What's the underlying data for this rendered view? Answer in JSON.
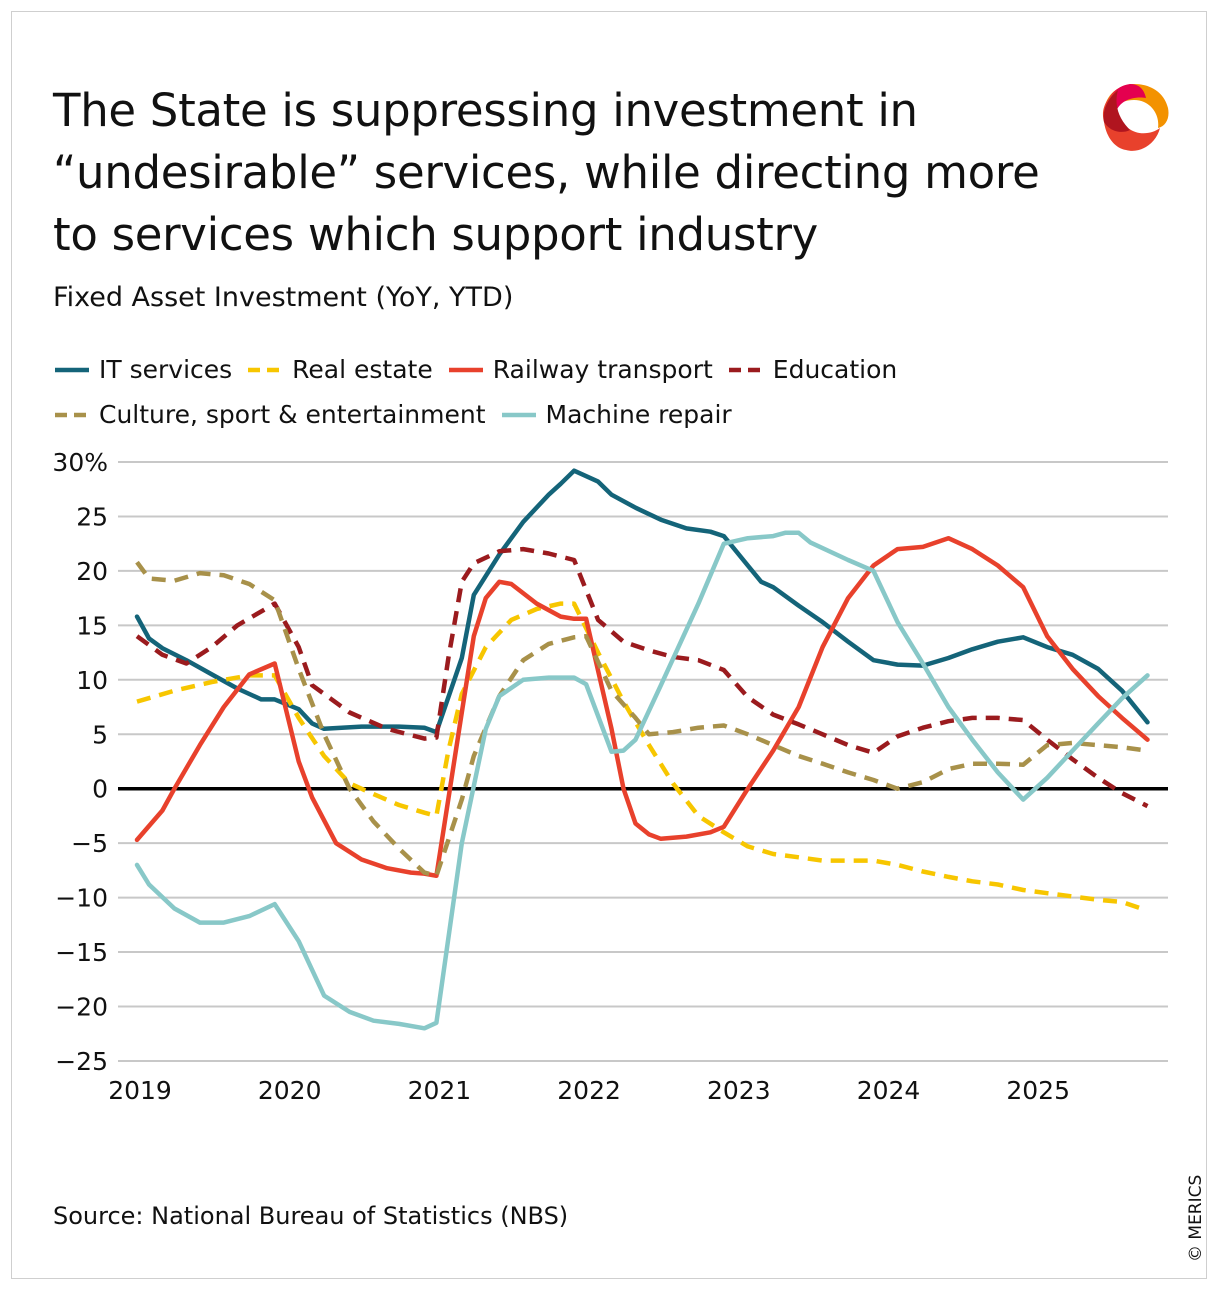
{
  "title": "The State is suppressing investment in “undesirable” services, while directing more to services which support industry",
  "subtitle": "Fixed Asset Investment (YoY, YTD)",
  "source": "Source: National Bureau of Statistics (NBS)",
  "copyright": "© MERICS",
  "logo": {
    "text": "MERICS",
    "colors": [
      "#c8102e",
      "#e4004f",
      "#f39200",
      "#e8412c"
    ]
  },
  "chart_data": {
    "type": "line",
    "title": "The State is suppressing investment in “undesirable” services, while directing more to services which support industry",
    "subtitle": "Fixed Asset Investment (YoY, YTD)",
    "xlabel": "",
    "ylabel": "",
    "xlim": [
      2019,
      2026
    ],
    "ylim": [
      -25,
      30
    ],
    "grid": "horizontal",
    "legend_position": "top",
    "x_ticks": [
      2019,
      2020,
      2021,
      2022,
      2023,
      2024,
      2025
    ],
    "x_tick_labels": [
      "2019",
      "2020",
      "2021",
      "2022",
      "2023",
      "2024",
      "2025"
    ],
    "y_ticks": [
      30,
      25,
      20,
      15,
      10,
      5,
      0,
      -5,
      -10,
      -15,
      -20,
      -25
    ],
    "y_tick_labels": [
      "30%",
      "25",
      "20",
      "15",
      "10",
      "5",
      "0",
      "−5",
      "−10",
      "−15",
      "−20",
      "−25"
    ],
    "series": [
      {
        "name": "IT services",
        "color": "#146479",
        "dashed": false,
        "points": [
          [
            2019,
            15.8
          ],
          [
            2019.08,
            13.8
          ],
          [
            2019.17,
            12.9
          ],
          [
            2019.33,
            11.8
          ],
          [
            2019.5,
            10.5
          ],
          [
            2019.67,
            9.2
          ],
          [
            2019.83,
            8.2
          ],
          [
            2019.92,
            8.2
          ],
          [
            2020.08,
            7.3
          ],
          [
            2020.17,
            6
          ],
          [
            2020.25,
            5.5
          ],
          [
            2020.5,
            5.7
          ],
          [
            2020.75,
            5.7
          ],
          [
            2020.92,
            5.6
          ],
          [
            2021,
            5.2
          ],
          [
            2021.17,
            12
          ],
          [
            2021.25,
            17.8
          ],
          [
            2021.42,
            21.5
          ],
          [
            2021.58,
            24.5
          ],
          [
            2021.75,
            27
          ],
          [
            2021.83,
            28
          ],
          [
            2021.92,
            29.2
          ],
          [
            2022.08,
            28.2
          ],
          [
            2022.17,
            27
          ],
          [
            2022.33,
            25.8
          ],
          [
            2022.5,
            24.7
          ],
          [
            2022.67,
            23.9
          ],
          [
            2022.83,
            23.6
          ],
          [
            2022.92,
            23.2
          ],
          [
            2023.08,
            20.5
          ],
          [
            2023.17,
            19
          ],
          [
            2023.25,
            18.5
          ],
          [
            2023.42,
            16.8
          ],
          [
            2023.58,
            15.3
          ],
          [
            2023.75,
            13.5
          ],
          [
            2023.92,
            11.8
          ],
          [
            2024.08,
            11.4
          ],
          [
            2024.25,
            11.3
          ],
          [
            2024.42,
            12.0
          ],
          [
            2024.58,
            12.8
          ],
          [
            2024.75,
            13.5
          ],
          [
            2024.92,
            13.9
          ],
          [
            2025.08,
            13.0
          ],
          [
            2025.25,
            12.3
          ],
          [
            2025.42,
            11.0
          ],
          [
            2025.58,
            9.0
          ],
          [
            2025.75,
            6.1
          ]
        ]
      },
      {
        "name": "Real estate",
        "color": "#f7c600",
        "dashed": true,
        "points": [
          [
            2019,
            8
          ],
          [
            2019.25,
            9
          ],
          [
            2019.5,
            9.8
          ],
          [
            2019.75,
            10.4
          ],
          [
            2019.92,
            10.4
          ],
          [
            2020.08,
            6.5
          ],
          [
            2020.25,
            3
          ],
          [
            2020.42,
            0.5
          ],
          [
            2020.58,
            -0.5
          ],
          [
            2020.75,
            -1.5
          ],
          [
            2020.92,
            -2.2
          ],
          [
            2021,
            -2.5
          ],
          [
            2021.08,
            3.5
          ],
          [
            2021.17,
            8.7
          ],
          [
            2021.33,
            13
          ],
          [
            2021.5,
            15.5
          ],
          [
            2021.67,
            16.5
          ],
          [
            2021.83,
            17
          ],
          [
            2021.92,
            17
          ],
          [
            2022.08,
            12.5
          ],
          [
            2022.25,
            8
          ],
          [
            2022.42,
            4
          ],
          [
            2022.58,
            0.5
          ],
          [
            2022.75,
            -2.5
          ],
          [
            2022.92,
            -4
          ],
          [
            2023.08,
            -5.3
          ],
          [
            2023.25,
            -6
          ],
          [
            2023.42,
            -6.3
          ],
          [
            2023.58,
            -6.6
          ],
          [
            2023.75,
            -6.6
          ],
          [
            2023.92,
            -6.6
          ],
          [
            2024.08,
            -7.0
          ],
          [
            2024.25,
            -7.6
          ],
          [
            2024.42,
            -8.1
          ],
          [
            2024.58,
            -8.5
          ],
          [
            2024.75,
            -8.8
          ],
          [
            2024.92,
            -9.3
          ],
          [
            2025.08,
            -9.6
          ],
          [
            2025.25,
            -9.9
          ],
          [
            2025.42,
            -10.2
          ],
          [
            2025.58,
            -10.4
          ],
          [
            2025.75,
            -11.2
          ]
        ]
      },
      {
        "name": "Railway transport",
        "color": "#e8412c",
        "dashed": false,
        "points": [
          [
            2019,
            -4.7
          ],
          [
            2019.17,
            -2
          ],
          [
            2019.25,
            0
          ],
          [
            2019.42,
            4
          ],
          [
            2019.58,
            7.5
          ],
          [
            2019.75,
            10.5
          ],
          [
            2019.92,
            11.5
          ],
          [
            2020.08,
            2.5
          ],
          [
            2020.17,
            -0.8
          ],
          [
            2020.33,
            -5
          ],
          [
            2020.5,
            -6.5
          ],
          [
            2020.67,
            -7.3
          ],
          [
            2020.83,
            -7.7
          ],
          [
            2020.92,
            -7.8
          ],
          [
            2021,
            -8
          ],
          [
            2021.17,
            7
          ],
          [
            2021.25,
            14
          ],
          [
            2021.33,
            17.5
          ],
          [
            2021.42,
            19
          ],
          [
            2021.5,
            18.8
          ],
          [
            2021.67,
            17
          ],
          [
            2021.83,
            15.8
          ],
          [
            2021.92,
            15.6
          ],
          [
            2022,
            15.6
          ],
          [
            2022.17,
            5.5
          ],
          [
            2022.25,
            0
          ],
          [
            2022.33,
            -3.2
          ],
          [
            2022.42,
            -4.2
          ],
          [
            2022.5,
            -4.6
          ],
          [
            2022.67,
            -4.4
          ],
          [
            2022.83,
            -4
          ],
          [
            2022.92,
            -3.5
          ],
          [
            2023.08,
            0
          ],
          [
            2023.25,
            3.5
          ],
          [
            2023.42,
            7.5
          ],
          [
            2023.58,
            13
          ],
          [
            2023.75,
            17.5
          ],
          [
            2023.92,
            20.5
          ],
          [
            2024.08,
            22
          ],
          [
            2024.25,
            22.2
          ],
          [
            2024.42,
            23
          ],
          [
            2024.58,
            22
          ],
          [
            2024.75,
            20.5
          ],
          [
            2024.92,
            18.5
          ],
          [
            2025.08,
            14
          ],
          [
            2025.25,
            11
          ],
          [
            2025.42,
            8.5
          ],
          [
            2025.58,
            6.5
          ],
          [
            2025.75,
            4.5
          ]
        ]
      },
      {
        "name": "Education",
        "color": "#9b1b1e",
        "dashed": true,
        "points": [
          [
            2019,
            14
          ],
          [
            2019.17,
            12.3
          ],
          [
            2019.33,
            11.5
          ],
          [
            2019.5,
            13
          ],
          [
            2019.67,
            15
          ],
          [
            2019.92,
            17
          ],
          [
            2020.08,
            13
          ],
          [
            2020.17,
            9.5
          ],
          [
            2020.42,
            7
          ],
          [
            2020.67,
            5.5
          ],
          [
            2020.92,
            4.6
          ],
          [
            2021,
            4.7
          ],
          [
            2021.08,
            12
          ],
          [
            2021.17,
            19
          ],
          [
            2021.25,
            20.7
          ],
          [
            2021.42,
            21.8
          ],
          [
            2021.58,
            22
          ],
          [
            2021.75,
            21.6
          ],
          [
            2021.92,
            21
          ],
          [
            2022.08,
            15.5
          ],
          [
            2022.25,
            13.5
          ],
          [
            2022.42,
            12.7
          ],
          [
            2022.58,
            12.1
          ],
          [
            2022.75,
            11.8
          ],
          [
            2022.92,
            10.9
          ],
          [
            2023.08,
            8.4
          ],
          [
            2023.25,
            6.8
          ],
          [
            2023.42,
            5.9
          ],
          [
            2023.58,
            5
          ],
          [
            2023.75,
            4
          ],
          [
            2023.92,
            3.3
          ],
          [
            2024.08,
            4.8
          ],
          [
            2024.25,
            5.6
          ],
          [
            2024.42,
            6.2
          ],
          [
            2024.58,
            6.5
          ],
          [
            2024.75,
            6.5
          ],
          [
            2024.92,
            6.3
          ],
          [
            2025.08,
            4.5
          ],
          [
            2025.25,
            2.7
          ],
          [
            2025.42,
            1
          ],
          [
            2025.58,
            -0.4
          ],
          [
            2025.75,
            -1.6
          ]
        ]
      },
      {
        "name": "Culture, sport & entertainment",
        "color": "#a8914a",
        "dashed": true,
        "points": [
          [
            2019,
            20.8
          ],
          [
            2019.08,
            19.3
          ],
          [
            2019.25,
            19.1
          ],
          [
            2019.42,
            19.8
          ],
          [
            2019.58,
            19.6
          ],
          [
            2019.75,
            18.8
          ],
          [
            2019.92,
            17.3
          ],
          [
            2020.08,
            11
          ],
          [
            2020.25,
            5
          ],
          [
            2020.42,
            0
          ],
          [
            2020.58,
            -3
          ],
          [
            2020.75,
            -5.5
          ],
          [
            2020.92,
            -7.7
          ],
          [
            2021,
            -8
          ],
          [
            2021.17,
            -1
          ],
          [
            2021.25,
            3
          ],
          [
            2021.42,
            8.5
          ],
          [
            2021.58,
            11.8
          ],
          [
            2021.75,
            13.3
          ],
          [
            2021.92,
            13.9
          ],
          [
            2022,
            14
          ],
          [
            2022.17,
            9
          ],
          [
            2022.33,
            6.5
          ],
          [
            2022.42,
            5
          ],
          [
            2022.58,
            5.2
          ],
          [
            2022.75,
            5.6
          ],
          [
            2022.92,
            5.8
          ],
          [
            2023.08,
            5
          ],
          [
            2023.25,
            4
          ],
          [
            2023.42,
            3
          ],
          [
            2023.58,
            2.3
          ],
          [
            2023.75,
            1.5
          ],
          [
            2023.92,
            0.8
          ],
          [
            2024.08,
            0
          ],
          [
            2024.25,
            0.6
          ],
          [
            2024.42,
            1.8
          ],
          [
            2024.58,
            2.3
          ],
          [
            2024.75,
            2.3
          ],
          [
            2024.92,
            2.2
          ],
          [
            2025.08,
            4
          ],
          [
            2025.25,
            4.2
          ],
          [
            2025.42,
            4
          ],
          [
            2025.58,
            3.8
          ],
          [
            2025.75,
            3.5
          ]
        ]
      },
      {
        "name": "Machine repair",
        "color": "#88c8c8",
        "dashed": false,
        "points": [
          [
            2019,
            -7
          ],
          [
            2019.08,
            -8.8
          ],
          [
            2019.25,
            -11
          ],
          [
            2019.42,
            -12.3
          ],
          [
            2019.58,
            -12.3
          ],
          [
            2019.75,
            -11.7
          ],
          [
            2019.92,
            -10.6
          ],
          [
            2020.08,
            -14
          ],
          [
            2020.25,
            -19
          ],
          [
            2020.42,
            -20.5
          ],
          [
            2020.58,
            -21.3
          ],
          [
            2020.75,
            -21.6
          ],
          [
            2020.92,
            -22
          ],
          [
            2021,
            -21.5
          ],
          [
            2021.17,
            -5
          ],
          [
            2021.33,
            5.5
          ],
          [
            2021.42,
            8.5
          ],
          [
            2021.58,
            10
          ],
          [
            2021.75,
            10.2
          ],
          [
            2021.92,
            10.2
          ],
          [
            2022,
            9.6
          ],
          [
            2022.17,
            3.4
          ],
          [
            2022.25,
            3.5
          ],
          [
            2022.33,
            4.5
          ],
          [
            2022.5,
            9.5
          ],
          [
            2022.75,
            17
          ],
          [
            2022.92,
            22.5
          ],
          [
            2023.08,
            23
          ],
          [
            2023.25,
            23.2
          ],
          [
            2023.33,
            23.5
          ],
          [
            2023.42,
            23.5
          ],
          [
            2023.5,
            22.6
          ],
          [
            2023.75,
            21
          ],
          [
            2023.92,
            20
          ],
          [
            2024.08,
            15.3
          ],
          [
            2024.25,
            11.5
          ],
          [
            2024.42,
            7.5
          ],
          [
            2024.58,
            4.5
          ],
          [
            2024.75,
            1.5
          ],
          [
            2024.92,
            -1
          ],
          [
            2025.08,
            1
          ],
          [
            2025.25,
            3.5
          ],
          [
            2025.42,
            6
          ],
          [
            2025.58,
            8.3
          ],
          [
            2025.75,
            10.4
          ]
        ]
      }
    ]
  }
}
